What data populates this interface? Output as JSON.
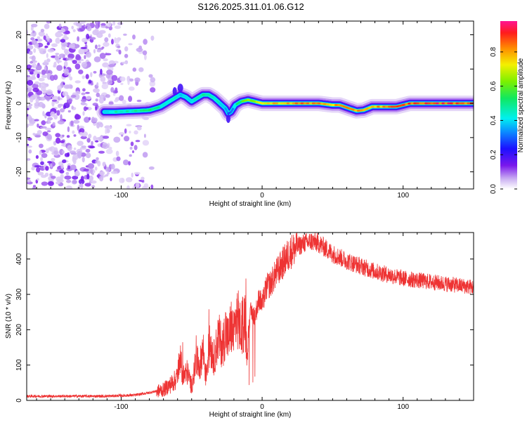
{
  "title": "S126.2025.311.01.06.G12",
  "chart_data": [
    {
      "type": "heatmap",
      "xlabel": "Height of straight line (km)",
      "ylabel": "Frequency (Hz)",
      "xlim": [
        -167,
        150
      ],
      "ylim": [
        -25,
        24
      ],
      "xticks": [
        -100,
        0,
        100
      ],
      "yticks": [
        -20,
        -10,
        0,
        10,
        20
      ],
      "colorbar": {
        "label": "Normalized spectral amplitude",
        "range": [
          0,
          0.98
        ],
        "ticks": [
          "0.0",
          "0.2",
          "0.4",
          "0.6",
          "0.8"
        ],
        "tick_values": [
          0.0,
          0.2,
          0.4,
          0.6,
          0.8
        ]
      },
      "ridge": {
        "description_values": "peak frequency (Hz) vs height (km)",
        "x": [
          -112,
          -105,
          -95,
          -88,
          -80,
          -72,
          -66,
          -62,
          -58,
          -54,
          -50,
          -46,
          -42,
          -38,
          -34,
          -30,
          -26,
          -24,
          -22,
          -19,
          -15,
          -10,
          -5,
          0,
          10,
          25,
          40,
          50,
          55,
          62,
          67,
          72,
          78,
          85,
          95,
          105,
          120,
          135,
          150
        ],
        "y": [
          -2.5,
          -2.5,
          -2.3,
          -2.2,
          -2.0,
          -1.0,
          0.5,
          1.5,
          2.5,
          1.8,
          0.5,
          1.5,
          2.5,
          2.5,
          1.5,
          0.0,
          -1.5,
          -3.0,
          -2.5,
          -0.5,
          0.5,
          1.0,
          0.5,
          0.0,
          0.0,
          0.0,
          0.0,
          -0.5,
          -0.5,
          -1.5,
          -2.2,
          -2.0,
          -1.0,
          -1.0,
          -1.0,
          0.0,
          0.0,
          0.0,
          0.0
        ],
        "amplitude": [
          0.45,
          0.5,
          0.5,
          0.55,
          0.55,
          0.5,
          0.5,
          0.5,
          0.4,
          0.45,
          0.45,
          0.5,
          0.55,
          0.55,
          0.5,
          0.45,
          0.4,
          0.3,
          0.35,
          0.5,
          0.6,
          0.7,
          0.75,
          0.8,
          0.85,
          0.9,
          0.9,
          0.85,
          0.88,
          0.85,
          0.9,
          0.9,
          0.85,
          0.9,
          0.92,
          0.95,
          0.97,
          0.97,
          0.95
        ]
      },
      "noise_region_x": [
        -167,
        -75
      ]
    },
    {
      "type": "line",
      "xlabel": "Height of straight line (km)",
      "ylabel": "SNR (10 * v/v)",
      "xlim": [
        -167,
        150
      ],
      "ylim": [
        0,
        475
      ],
      "xticks": [
        -100,
        0,
        100
      ],
      "yticks": [
        0,
        100,
        200,
        300,
        400
      ],
      "color": "#ee3333",
      "series": [
        {
          "name": "SNR",
          "x": [
            -167,
            -140,
            -110,
            -90,
            -80,
            -70,
            -65,
            -61,
            -58,
            -56,
            -53,
            -50,
            -47,
            -44,
            -42,
            -40,
            -37,
            -34,
            -31,
            -28,
            -26,
            -24,
            -22,
            -20,
            -18,
            -15,
            -12,
            -11,
            -10,
            -8,
            -5,
            -2,
            0,
            3,
            6,
            10,
            15,
            20,
            25,
            30,
            35,
            40,
            45,
            50,
            55,
            60,
            70,
            80,
            90,
            100,
            110,
            120,
            130,
            140,
            150
          ],
          "y": [
            12,
            12,
            12,
            15,
            22,
            30,
            45,
            60,
            110,
            70,
            80,
            40,
            110,
            100,
            150,
            70,
            160,
            120,
            180,
            150,
            200,
            170,
            210,
            180,
            240,
            200,
            230,
            150,
            190,
            250,
            240,
            290,
            270,
            320,
            330,
            360,
            390,
            420,
            435,
            445,
            450,
            445,
            430,
            415,
            405,
            395,
            380,
            365,
            355,
            345,
            340,
            335,
            330,
            325,
            320
          ]
        }
      ]
    }
  ]
}
